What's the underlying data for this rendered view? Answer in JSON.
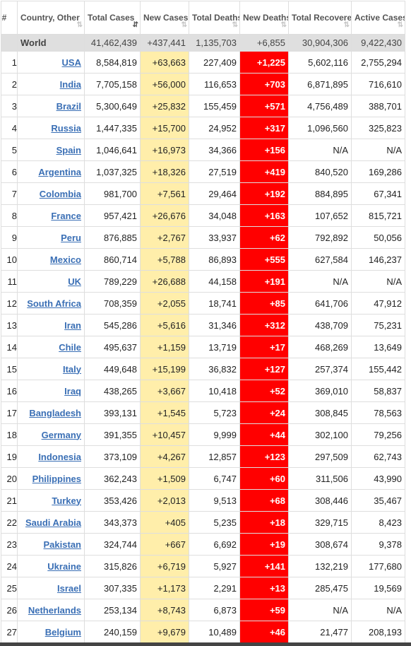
{
  "headers": [
    {
      "label": "#",
      "sort": false
    },
    {
      "label": "Country, Other",
      "sort": true
    },
    {
      "label": "Total Cases",
      "sort": true,
      "active": true
    },
    {
      "label": "New Cases",
      "sort": true
    },
    {
      "label": "Total Deaths",
      "sort": true
    },
    {
      "label": "New Deaths",
      "sort": true
    },
    {
      "label": "Total Recovered",
      "sort": true
    },
    {
      "label": "Active Cases",
      "sort": true
    }
  ],
  "sort_icon": "⇅",
  "sort_icon_active": "⇵",
  "world": {
    "country": "World",
    "total_cases": "41,462,439",
    "new_cases": "+437,441",
    "total_deaths": "1,135,703",
    "new_deaths": "+6,855",
    "total_recovered": "30,904,306",
    "active_cases": "9,422,430"
  },
  "rows": [
    {
      "rank": "1",
      "country": "USA",
      "total_cases": "8,584,819",
      "new_cases": "+63,663",
      "total_deaths": "227,409",
      "new_deaths": "+1,225",
      "total_recovered": "5,602,116",
      "active_cases": "2,755,294"
    },
    {
      "rank": "2",
      "country": "India",
      "total_cases": "7,705,158",
      "new_cases": "+56,000",
      "total_deaths": "116,653",
      "new_deaths": "+703",
      "total_recovered": "6,871,895",
      "active_cases": "716,610"
    },
    {
      "rank": "3",
      "country": "Brazil",
      "total_cases": "5,300,649",
      "new_cases": "+25,832",
      "total_deaths": "155,459",
      "new_deaths": "+571",
      "total_recovered": "4,756,489",
      "active_cases": "388,701"
    },
    {
      "rank": "4",
      "country": "Russia",
      "total_cases": "1,447,335",
      "new_cases": "+15,700",
      "total_deaths": "24,952",
      "new_deaths": "+317",
      "total_recovered": "1,096,560",
      "active_cases": "325,823"
    },
    {
      "rank": "5",
      "country": "Spain",
      "total_cases": "1,046,641",
      "new_cases": "+16,973",
      "total_deaths": "34,366",
      "new_deaths": "+156",
      "total_recovered": "N/A",
      "active_cases": "N/A"
    },
    {
      "rank": "6",
      "country": "Argentina",
      "total_cases": "1,037,325",
      "new_cases": "+18,326",
      "total_deaths": "27,519",
      "new_deaths": "+419",
      "total_recovered": "840,520",
      "active_cases": "169,286"
    },
    {
      "rank": "7",
      "country": "Colombia",
      "total_cases": "981,700",
      "new_cases": "+7,561",
      "total_deaths": "29,464",
      "new_deaths": "+192",
      "total_recovered": "884,895",
      "active_cases": "67,341"
    },
    {
      "rank": "8",
      "country": "France",
      "total_cases": "957,421",
      "new_cases": "+26,676",
      "total_deaths": "34,048",
      "new_deaths": "+163",
      "total_recovered": "107,652",
      "active_cases": "815,721"
    },
    {
      "rank": "9",
      "country": "Peru",
      "total_cases": "876,885",
      "new_cases": "+2,767",
      "total_deaths": "33,937",
      "new_deaths": "+62",
      "total_recovered": "792,892",
      "active_cases": "50,056"
    },
    {
      "rank": "10",
      "country": "Mexico",
      "total_cases": "860,714",
      "new_cases": "+5,788",
      "total_deaths": "86,893",
      "new_deaths": "+555",
      "total_recovered": "627,584",
      "active_cases": "146,237"
    },
    {
      "rank": "11",
      "country": "UK",
      "total_cases": "789,229",
      "new_cases": "+26,688",
      "total_deaths": "44,158",
      "new_deaths": "+191",
      "total_recovered": "N/A",
      "active_cases": "N/A"
    },
    {
      "rank": "12",
      "country": "South Africa",
      "total_cases": "708,359",
      "new_cases": "+2,055",
      "total_deaths": "18,741",
      "new_deaths": "+85",
      "total_recovered": "641,706",
      "active_cases": "47,912"
    },
    {
      "rank": "13",
      "country": "Iran",
      "total_cases": "545,286",
      "new_cases": "+5,616",
      "total_deaths": "31,346",
      "new_deaths": "+312",
      "total_recovered": "438,709",
      "active_cases": "75,231"
    },
    {
      "rank": "14",
      "country": "Chile",
      "total_cases": "495,637",
      "new_cases": "+1,159",
      "total_deaths": "13,719",
      "new_deaths": "+17",
      "total_recovered": "468,269",
      "active_cases": "13,649"
    },
    {
      "rank": "15",
      "country": "Italy",
      "total_cases": "449,648",
      "new_cases": "+15,199",
      "total_deaths": "36,832",
      "new_deaths": "+127",
      "total_recovered": "257,374",
      "active_cases": "155,442"
    },
    {
      "rank": "16",
      "country": "Iraq",
      "total_cases": "438,265",
      "new_cases": "+3,667",
      "total_deaths": "10,418",
      "new_deaths": "+52",
      "total_recovered": "369,010",
      "active_cases": "58,837"
    },
    {
      "rank": "17",
      "country": "Bangladesh",
      "total_cases": "393,131",
      "new_cases": "+1,545",
      "total_deaths": "5,723",
      "new_deaths": "+24",
      "total_recovered": "308,845",
      "active_cases": "78,563"
    },
    {
      "rank": "18",
      "country": "Germany",
      "total_cases": "391,355",
      "new_cases": "+10,457",
      "total_deaths": "9,999",
      "new_deaths": "+44",
      "total_recovered": "302,100",
      "active_cases": "79,256"
    },
    {
      "rank": "19",
      "country": "Indonesia",
      "total_cases": "373,109",
      "new_cases": "+4,267",
      "total_deaths": "12,857",
      "new_deaths": "+123",
      "total_recovered": "297,509",
      "active_cases": "62,743"
    },
    {
      "rank": "20",
      "country": "Philippines",
      "total_cases": "362,243",
      "new_cases": "+1,509",
      "total_deaths": "6,747",
      "new_deaths": "+60",
      "total_recovered": "311,506",
      "active_cases": "43,990"
    },
    {
      "rank": "21",
      "country": "Turkey",
      "total_cases": "353,426",
      "new_cases": "+2,013",
      "total_deaths": "9,513",
      "new_deaths": "+68",
      "total_recovered": "308,446",
      "active_cases": "35,467"
    },
    {
      "rank": "22",
      "country": "Saudi Arabia",
      "total_cases": "343,373",
      "new_cases": "+405",
      "total_deaths": "5,235",
      "new_deaths": "+18",
      "total_recovered": "329,715",
      "active_cases": "8,423"
    },
    {
      "rank": "23",
      "country": "Pakistan",
      "total_cases": "324,744",
      "new_cases": "+667",
      "total_deaths": "6,692",
      "new_deaths": "+19",
      "total_recovered": "308,674",
      "active_cases": "9,378"
    },
    {
      "rank": "24",
      "country": "Ukraine",
      "total_cases": "315,826",
      "new_cases": "+6,719",
      "total_deaths": "5,927",
      "new_deaths": "+141",
      "total_recovered": "132,219",
      "active_cases": "177,680"
    },
    {
      "rank": "25",
      "country": "Israel",
      "total_cases": "307,335",
      "new_cases": "+1,173",
      "total_deaths": "2,291",
      "new_deaths": "+13",
      "total_recovered": "285,475",
      "active_cases": "19,569"
    },
    {
      "rank": "26",
      "country": "Netherlands",
      "total_cases": "253,134",
      "new_cases": "+8,743",
      "total_deaths": "6,873",
      "new_deaths": "+59",
      "total_recovered": "N/A",
      "active_cases": "N/A"
    },
    {
      "rank": "27",
      "country": "Belgium",
      "total_cases": "240,159",
      "new_cases": "+9,679",
      "total_deaths": "10,489",
      "new_deaths": "+46",
      "total_recovered": "21,477",
      "active_cases": "208,193"
    }
  ],
  "colors": {
    "new_cases_bg": "#ffeeaa",
    "new_deaths_bg": "#ff0000",
    "world_bg": "#dfdfdf",
    "link": "#3a6fb5"
  }
}
